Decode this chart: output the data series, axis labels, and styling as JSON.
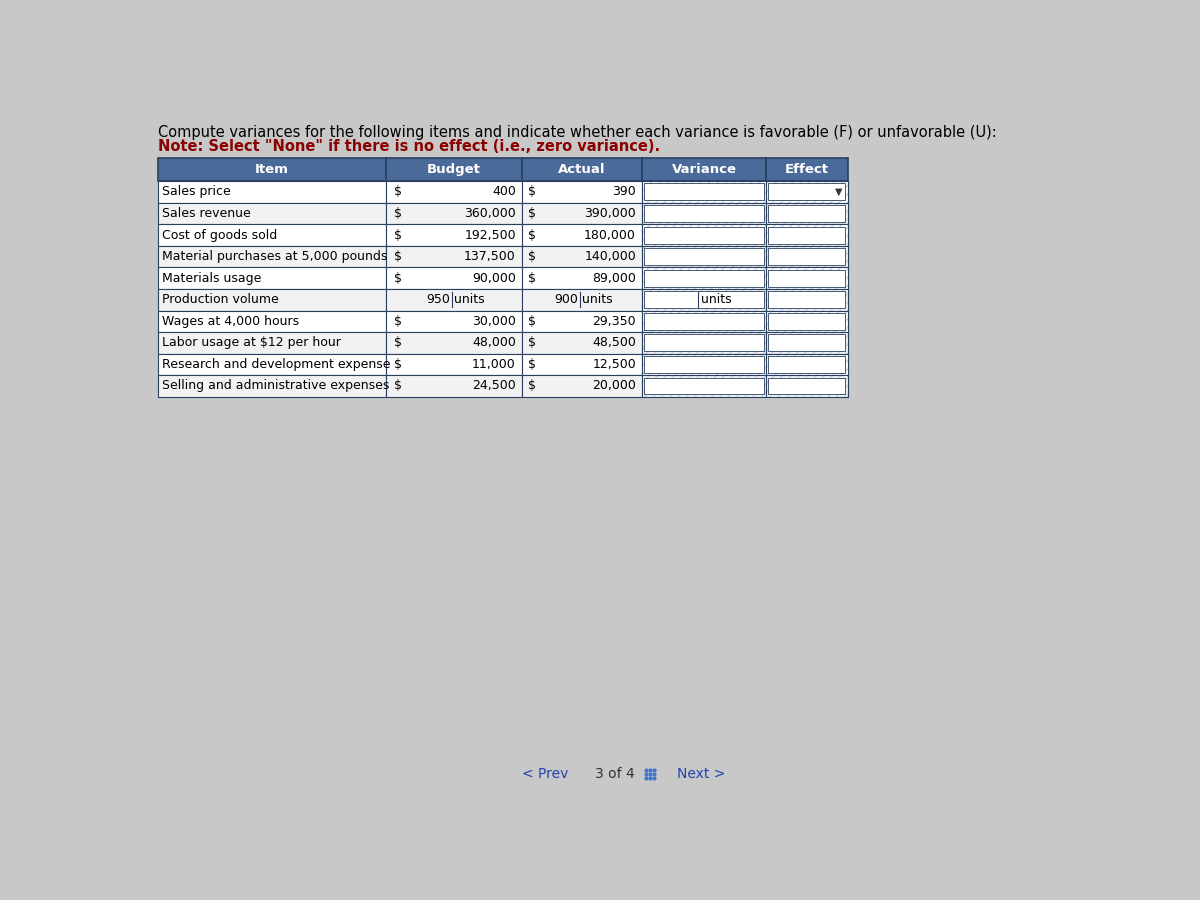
{
  "title_line1": "Compute variances for the following items and indicate whether each variance is favorable (F) or unfavorable (U):",
  "title_line2": "Note: Select \"None\" if there is no effect (i.e., zero variance).",
  "header": [
    "Item",
    "Budget",
    "Actual",
    "Variance",
    "Effect"
  ],
  "rows": [
    {
      "item": "Sales price",
      "budget_dollar": true,
      "budget_val": "400",
      "actual_dollar": true,
      "actual_val": "390",
      "variance_unit": "",
      "has_dropdown": true
    },
    {
      "item": "Sales revenue",
      "budget_dollar": true,
      "budget_val": "360,000",
      "actual_dollar": true,
      "actual_val": "390,000",
      "variance_unit": "",
      "has_dropdown": false
    },
    {
      "item": "Cost of goods sold",
      "budget_dollar": true,
      "budget_val": "192,500",
      "actual_dollar": true,
      "actual_val": "180,000",
      "variance_unit": "",
      "has_dropdown": false
    },
    {
      "item": "Material purchases at 5,000 pounds",
      "budget_dollar": true,
      "budget_val": "137,500",
      "actual_dollar": true,
      "actual_val": "140,000",
      "variance_unit": "",
      "has_dropdown": false
    },
    {
      "item": "Materials usage",
      "budget_dollar": true,
      "budget_val": "90,000",
      "actual_dollar": true,
      "actual_val": "89,000",
      "variance_unit": "",
      "has_dropdown": false
    },
    {
      "item": "Production volume",
      "budget_dollar": false,
      "budget_val": "950 units",
      "actual_dollar": false,
      "actual_val": "900 units",
      "variance_unit": "units",
      "has_dropdown": false
    },
    {
      "item": "Wages at 4,000 hours",
      "budget_dollar": true,
      "budget_val": "30,000",
      "actual_dollar": true,
      "actual_val": "29,350",
      "variance_unit": "",
      "has_dropdown": false
    },
    {
      "item": "Labor usage at $12 per hour",
      "budget_dollar": true,
      "budget_val": "48,000",
      "actual_dollar": true,
      "actual_val": "48,500",
      "variance_unit": "",
      "has_dropdown": false
    },
    {
      "item": "Research and development expense",
      "budget_dollar": true,
      "budget_val": "11,000",
      "actual_dollar": true,
      "actual_val": "12,500",
      "variance_unit": "",
      "has_dropdown": false
    },
    {
      "item": "Selling and administrative expenses",
      "budget_dollar": true,
      "budget_val": "24,500",
      "actual_dollar": true,
      "actual_val": "20,000",
      "variance_unit": "",
      "has_dropdown": false
    }
  ],
  "header_bg": "#4a6b9a",
  "header_fg": "#ffffff",
  "row_bg_white": "#ffffff",
  "row_bg_gray": "#f2f2f2",
  "border_color": "#2a3f5f",
  "bg_color": "#c8c8c8",
  "title1_color": "#000000",
  "title2_color": "#8b0000",
  "hatch_color": "#c8d8e8",
  "hatch_pattern": "////",
  "variance_input_bg": "#ffffff",
  "effect_input_bg": "#ffffff"
}
